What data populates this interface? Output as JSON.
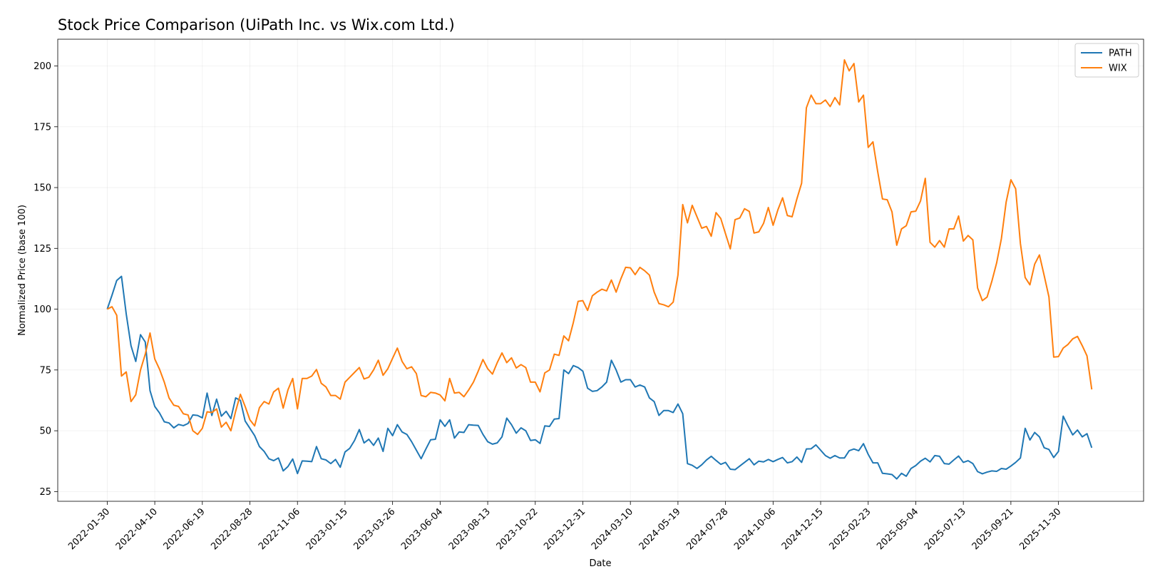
{
  "chart_data": {
    "type": "line",
    "title": "Stock Price Comparison (UiPath Inc. vs Wix.com Ltd.)",
    "xlabel": "Date",
    "ylabel": "Normalized Price (base 100)",
    "ylim": [
      21,
      211
    ],
    "yticks": [
      25,
      50,
      75,
      100,
      125,
      150,
      175,
      200
    ],
    "xlim": [
      -10.4,
      217.9
    ],
    "xtick_labels": [
      "2022-01-30",
      "2022-04-10",
      "2022-06-19",
      "2022-08-28",
      "2022-11-06",
      "2023-01-15",
      "2023-03-26",
      "2023-06-04",
      "2023-08-13",
      "2023-10-22",
      "2023-12-31",
      "2024-03-10",
      "2024-05-19",
      "2024-07-28",
      "2024-10-06",
      "2024-12-15",
      "2025-02-23",
      "2025-05-04",
      "2025-07-13",
      "2025-09-21",
      "2025-11-30"
    ],
    "xtick_positions": [
      0,
      10,
      20,
      30,
      40,
      50,
      60,
      70,
      80,
      90,
      100,
      110,
      120,
      130,
      140,
      150,
      160,
      170,
      180,
      190,
      200
    ],
    "grid": true,
    "legend_position": "top-right",
    "series": [
      {
        "name": "PATH",
        "color": "#1f77b4",
        "values": [
          100,
          105.7,
          111.8,
          113.5,
          98,
          85,
          78.5,
          89.5,
          86.5,
          66.5,
          60,
          57.3,
          53.7,
          53.2,
          51.2,
          52.6,
          52.1,
          53,
          56.5,
          56.3,
          55.3,
          65.5,
          56.3,
          63,
          56,
          58,
          55,
          63.5,
          62.5,
          54,
          51,
          48,
          43.5,
          41.5,
          38.5,
          37.7,
          38.8,
          33.5,
          35.3,
          38.4,
          32.4,
          37.6,
          37.5,
          37.3,
          43.5,
          38.5,
          38,
          36.5,
          38.2,
          35,
          41.3,
          42.8,
          46,
          50.5,
          45,
          46.5,
          44,
          47,
          41.5,
          51,
          48,
          52.5,
          49.5,
          48.5,
          45.5,
          42,
          38.5,
          42.5,
          46.3,
          46.5,
          54.5,
          51.8,
          54.5,
          47,
          49.5,
          49.3,
          52.5,
          52.3,
          52.2,
          48.5,
          45.5,
          44.5,
          45,
          47.5,
          55.2,
          52.5,
          49,
          51.2,
          50,
          46,
          46.3,
          44.8,
          52,
          51.8,
          54.8,
          55,
          75,
          73.5,
          76.8,
          76,
          74.5,
          67.5,
          66.2,
          66.5,
          68,
          70,
          79,
          75,
          70,
          71,
          71,
          68,
          68.8,
          68,
          63.5,
          62,
          56.3,
          58.3,
          58.3,
          57.5,
          61,
          57,
          36.5,
          35.8,
          34.5,
          36,
          38,
          39.5,
          37.8,
          36.2,
          37,
          34.2,
          34,
          35.5,
          37,
          38.5,
          36,
          37.5,
          37.2,
          38.2,
          37.3,
          38.2,
          39,
          36.8,
          37.3,
          39.2,
          37,
          42.5,
          42.6,
          44.2,
          42,
          39.8,
          38.7,
          39.8,
          38.8,
          38.8,
          41.8,
          42.5,
          41.8,
          44.7,
          40.3,
          36.8,
          36.8,
          32.5,
          32.3,
          32,
          30.2,
          32.5,
          31.3,
          34.5,
          35.7,
          37.5,
          38.7,
          37.2,
          39.8,
          39.5,
          36.5,
          36.3,
          38,
          39.6,
          37,
          37.7,
          36.5,
          33.2,
          32.3,
          33,
          33.5,
          33.3,
          34.5,
          34.2,
          35.5,
          37,
          38.8,
          51,
          46.2,
          49.3,
          47.5,
          43,
          42.3,
          39,
          41.5,
          56,
          52,
          48.3,
          50.3,
          47.5,
          48.8,
          43
        ]
      },
      {
        "name": "WIX",
        "color": "#ff7f0e",
        "values": [
          100,
          101,
          97.5,
          72.5,
          74.2,
          62,
          64.8,
          75,
          81.5,
          90.2,
          79.5,
          75.3,
          70,
          63.5,
          60.5,
          60,
          57,
          56.5,
          50,
          48.5,
          51,
          57.8,
          57.5,
          59,
          51.5,
          53.5,
          50,
          58,
          65,
          60,
          54.5,
          52,
          59.5,
          62,
          61,
          66,
          67.5,
          59.3,
          66.8,
          71.5,
          59,
          71.5,
          71.5,
          72.5,
          75.2,
          69.5,
          68,
          64.5,
          64.5,
          63,
          70,
          72,
          74,
          76,
          71.3,
          72,
          75,
          79,
          72.8,
          75.5,
          79.8,
          84,
          78.5,
          75.5,
          76.3,
          73.5,
          64.5,
          64,
          65.8,
          65.5,
          64.7,
          62.3,
          71.5,
          65.5,
          65.8,
          64,
          66.8,
          70,
          74.5,
          79.3,
          75.5,
          73.3,
          78,
          82,
          78,
          80,
          75.8,
          77.2,
          76,
          70,
          70,
          66,
          73.8,
          75,
          81.5,
          81,
          89,
          87,
          94.5,
          103.2,
          103.5,
          99.5,
          105.5,
          107,
          108.2,
          107.5,
          112,
          107,
          112.5,
          117.2,
          117,
          114.2,
          117.2,
          115.8,
          114,
          107,
          102.3,
          101.8,
          101,
          102.9,
          114,
          143,
          135.5,
          142.7,
          138,
          133.3,
          134,
          130,
          139.7,
          137.3,
          131,
          124.8,
          136.8,
          137.5,
          141.3,
          140.2,
          131.3,
          131.8,
          135.3,
          141.8,
          134.5,
          140.8,
          145.8,
          138.5,
          138,
          145.3,
          151.8,
          182.8,
          188,
          184.5,
          184.5,
          186,
          183.3,
          187,
          184,
          202.5,
          198,
          201,
          185.2,
          188,
          166.5,
          168.8,
          156.5,
          145.3,
          145,
          140,
          126.3,
          133,
          134.3,
          140,
          140.3,
          144.5,
          153.8,
          127.5,
          125.5,
          128.2,
          125.5,
          133,
          133,
          138.3,
          128,
          130.3,
          128.5,
          108.7,
          103.5,
          105,
          111.5,
          119,
          129,
          144,
          153.2,
          149.5,
          127,
          113,
          110,
          118.5,
          122.3,
          113.8,
          105,
          80.3,
          80.5,
          84,
          85.5,
          87.8,
          88.8,
          85,
          80.8,
          67
        ]
      }
    ]
  }
}
